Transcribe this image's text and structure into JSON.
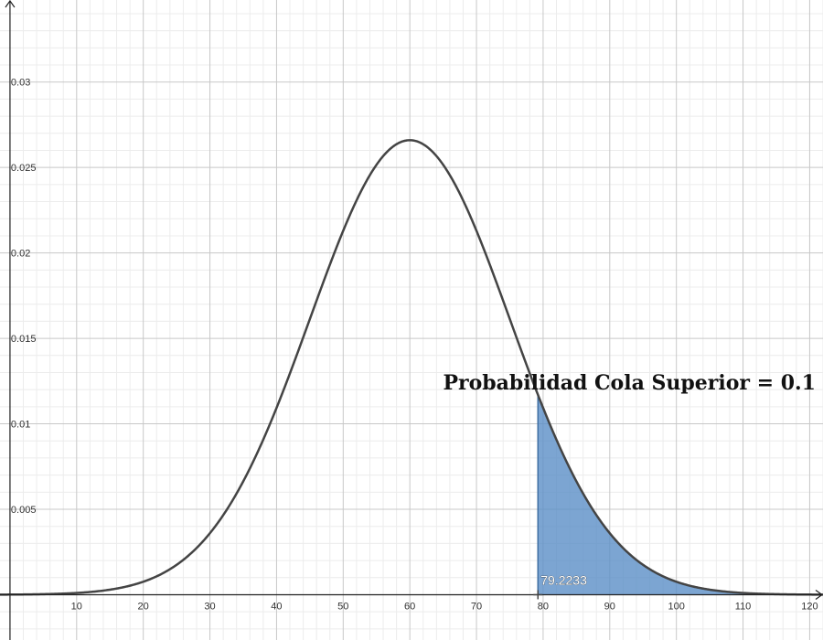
{
  "chart_data": {
    "type": "area",
    "title": "",
    "xlabel": "",
    "ylabel": "",
    "xlim": [
      -1.5,
      122
    ],
    "ylim": [
      -0.00265,
      0.0348
    ],
    "grid": true,
    "distribution": {
      "name": "normal",
      "mean": 60,
      "sd": 15
    },
    "x_ticks": [
      10,
      20,
      30,
      40,
      50,
      60,
      70,
      80,
      90,
      100,
      110,
      120
    ],
    "y_ticks": [
      0.005,
      0.01,
      0.015,
      0.02,
      0.025,
      0.03
    ],
    "x_tick_labels": [
      "10",
      "20",
      "30",
      "40",
      "50",
      "60",
      "70",
      "80",
      "90",
      "100",
      "110",
      "120"
    ],
    "y_tick_labels": [
      "0.005",
      "0.01",
      "0.015",
      "0.02",
      "0.025",
      "0.03"
    ],
    "curve": {
      "x": [
        0,
        10,
        20,
        30,
        40,
        50,
        60,
        70,
        80,
        90,
        100,
        110,
        120
      ],
      "y": [
        1e-05,
        0.0001,
        0.00076,
        0.0036,
        0.01093,
        0.0213,
        0.0266,
        0.0213,
        0.01093,
        0.0036,
        0.00076,
        0.0001,
        1e-05
      ]
    },
    "shaded_region": {
      "from": 79.2233,
      "to": 122,
      "color": "#5b8fc7",
      "opacity": 0.8
    },
    "curve_color": "#444444",
    "cutoff_label": "79.2233",
    "annotation": "Probabilidad Cola Superior = 0.1"
  }
}
